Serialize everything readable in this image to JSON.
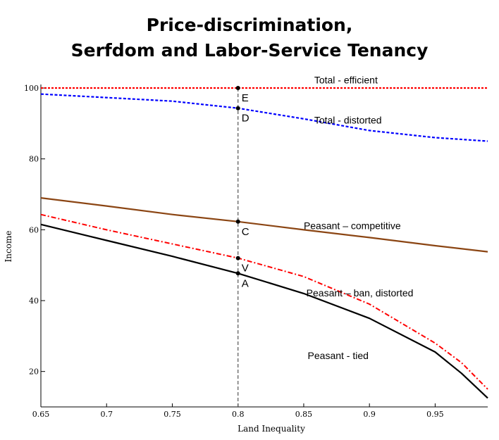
{
  "title": {
    "line1": "Price-discrimination,",
    "line2": "Serfdom and Labor-Service Tenancy"
  },
  "chart_data": {
    "type": "line",
    "xlabel": "Land Inequality",
    "ylabel": "Income",
    "xlim": [
      0.65,
      0.99
    ],
    "ylim": [
      10,
      101
    ],
    "xticks": [
      0.65,
      0.7,
      0.75,
      0.8,
      0.85,
      0.9,
      0.95
    ],
    "xtick_labels": [
      "0.65",
      "0.7",
      "0.75",
      "0.8",
      "0.85",
      "0.9",
      "0.95"
    ],
    "yticks": [
      20,
      40,
      60,
      80,
      100
    ],
    "ytick_labels": [
      "20",
      "40",
      "60",
      "80",
      "100"
    ],
    "grid": false,
    "series": [
      {
        "name": "Total - efficient",
        "color": "#ff0000",
        "style": "dotted",
        "label_at": [
          0.858,
          101.3
        ],
        "x": [
          0.65,
          0.7,
          0.75,
          0.8,
          0.85,
          0.9,
          0.95,
          0.99
        ],
        "y": [
          100,
          100,
          100,
          100,
          100,
          100,
          100,
          100
        ]
      },
      {
        "name": "Total - distorted",
        "color": "#0000ff",
        "style": "dashed",
        "label_at": [
          0.858,
          90
        ],
        "x": [
          0.65,
          0.7,
          0.75,
          0.8,
          0.85,
          0.9,
          0.95,
          0.99
        ],
        "y": [
          98.3,
          97.3,
          96.3,
          94.3,
          91.3,
          88.0,
          86.0,
          85.0
        ]
      },
      {
        "name": "Peasant – competitive",
        "color": "#8b4513",
        "style": "solid",
        "label_at": [
          0.85,
          60.2
        ],
        "x": [
          0.65,
          0.7,
          0.75,
          0.8,
          0.85,
          0.9,
          0.95,
          0.99
        ],
        "y": [
          69.0,
          66.7,
          64.3,
          62.3,
          60.0,
          57.8,
          55.5,
          53.8
        ]
      },
      {
        "name": "Peasant – ban, distorted",
        "color": "#ff0000",
        "style": "dashdot",
        "label_at": [
          0.852,
          41.2
        ],
        "x": [
          0.65,
          0.7,
          0.75,
          0.8,
          0.85,
          0.9,
          0.95,
          0.97,
          0.99
        ],
        "y": [
          64.3,
          60.0,
          56.0,
          52.0,
          46.8,
          39.0,
          28.0,
          22.5,
          15.0
        ]
      },
      {
        "name": "Peasant - tied",
        "color": "#000000",
        "style": "solid",
        "label_at": [
          0.853,
          23.5
        ],
        "x": [
          0.65,
          0.7,
          0.75,
          0.8,
          0.85,
          0.9,
          0.95,
          0.97,
          0.99
        ],
        "y": [
          61.5,
          57.0,
          52.5,
          47.7,
          42.0,
          35.0,
          25.5,
          19.5,
          12.5
        ]
      }
    ],
    "vline": {
      "x": 0.8,
      "y_range": [
        10,
        100
      ]
    },
    "points": [
      {
        "label": "E",
        "x": 0.8,
        "y": 100.0
      },
      {
        "label": "D",
        "x": 0.8,
        "y": 94.3
      },
      {
        "label": "C",
        "x": 0.8,
        "y": 62.3
      },
      {
        "label": "V",
        "x": 0.8,
        "y": 52.0
      },
      {
        "label": "A",
        "x": 0.8,
        "y": 47.7
      }
    ]
  }
}
